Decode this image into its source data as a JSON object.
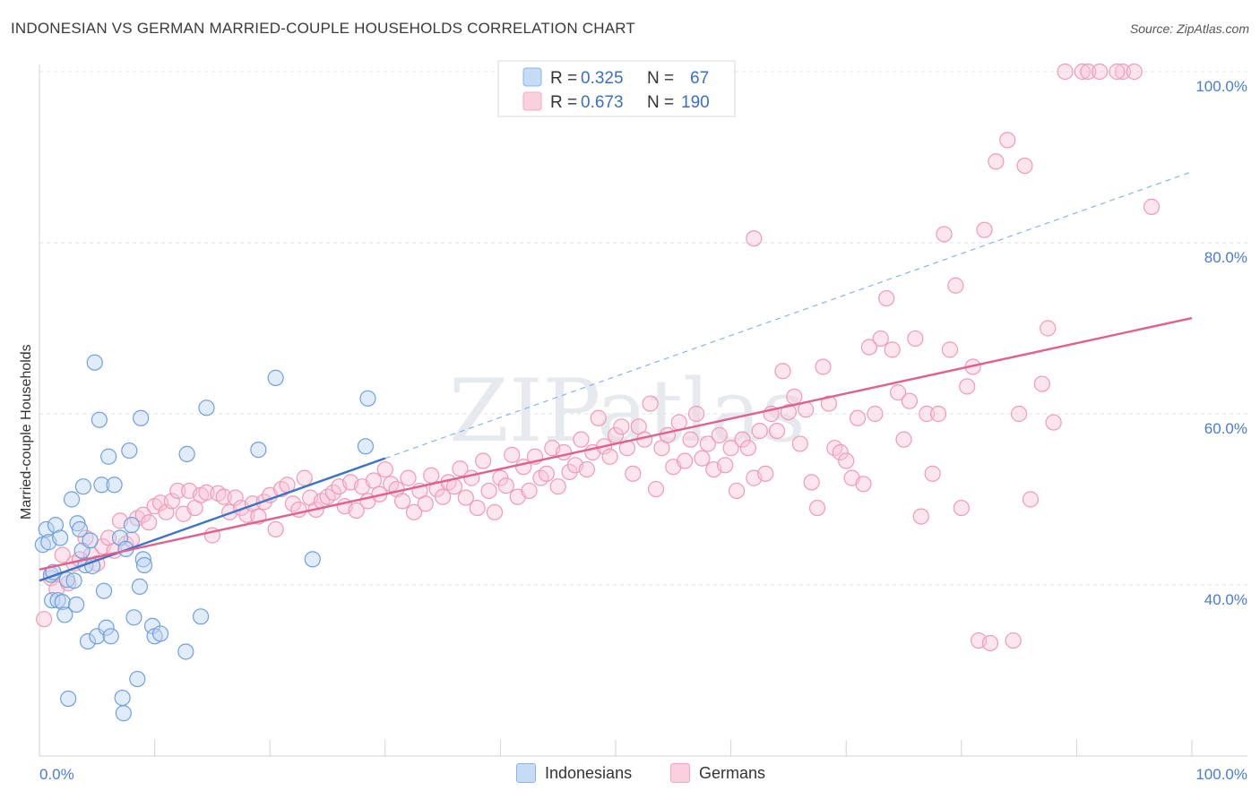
{
  "chart_data": {
    "type": "scatter",
    "title": "INDONESIAN VS GERMAN MARRIED-COUPLE HOUSEHOLDS CORRELATION CHART",
    "source": "Source: ZipAtlas.com",
    "ylabel": "Married-couple Households",
    "xlim": [
      0,
      100
    ],
    "ylim": [
      20,
      102
    ],
    "x_tick_labels": [
      "0.0%",
      "100.0%"
    ],
    "y_ticks": [
      40,
      60,
      80,
      100
    ],
    "y_tick_labels": [
      "40.0%",
      "60.0%",
      "80.0%",
      "100.0%"
    ],
    "watermark": "ZIPatlas",
    "legend": [
      {
        "r_label": "R =",
        "r_value": "0.325",
        "n_label": "N =",
        "n_value": "67"
      },
      {
        "r_label": "R =",
        "r_value": "0.673",
        "n_label": "N =",
        "n_value": "190"
      }
    ],
    "series": [
      {
        "name": "Indonesians",
        "color": "#8ab4e8",
        "line_color": "#3a73c9",
        "trend": {
          "x0": 0,
          "y0": 40.5,
          "x1": 30,
          "y1": 54.8,
          "dashed_to_x": 100,
          "dashed_to_y": 88.3
        },
        "points": [
          [
            0.3,
            44.7
          ],
          [
            0.6,
            46.5
          ],
          [
            0.8,
            45.0
          ],
          [
            1.0,
            41.2
          ],
          [
            1.1,
            38.2
          ],
          [
            1.2,
            41.5
          ],
          [
            1.4,
            47.0
          ],
          [
            1.6,
            38.2
          ],
          [
            1.8,
            45.5
          ],
          [
            2.0,
            38.0
          ],
          [
            2.2,
            36.5
          ],
          [
            2.4,
            40.6
          ],
          [
            2.5,
            26.7
          ],
          [
            2.8,
            50.0
          ],
          [
            3.0,
            40.5
          ],
          [
            3.2,
            37.7
          ],
          [
            3.3,
            47.2
          ],
          [
            3.5,
            46.5
          ],
          [
            3.7,
            44.0
          ],
          [
            3.8,
            51.5
          ],
          [
            4.0,
            42.3
          ],
          [
            4.2,
            33.4
          ],
          [
            4.4,
            45.2
          ],
          [
            4.6,
            42.2
          ],
          [
            4.8,
            66.0
          ],
          [
            5.0,
            34.0
          ],
          [
            5.2,
            59.3
          ],
          [
            5.4,
            51.7
          ],
          [
            5.6,
            39.3
          ],
          [
            5.8,
            35.0
          ],
          [
            6.0,
            55.0
          ],
          [
            6.2,
            34.0
          ],
          [
            6.5,
            51.7
          ],
          [
            7.0,
            45.5
          ],
          [
            7.2,
            26.8
          ],
          [
            7.3,
            25.0
          ],
          [
            7.5,
            44.2
          ],
          [
            7.8,
            55.7
          ],
          [
            8.0,
            47.0
          ],
          [
            8.2,
            36.2
          ],
          [
            8.5,
            29.0
          ],
          [
            8.7,
            39.8
          ],
          [
            8.8,
            59.5
          ],
          [
            9.0,
            43.0
          ],
          [
            9.1,
            42.3
          ],
          [
            9.8,
            35.2
          ],
          [
            10.0,
            34.0
          ],
          [
            10.5,
            34.3
          ],
          [
            12.7,
            32.2
          ],
          [
            12.8,
            55.3
          ],
          [
            14.0,
            36.3
          ],
          [
            14.5,
            60.7
          ],
          [
            19.0,
            55.8
          ],
          [
            20.5,
            64.2
          ],
          [
            23.7,
            43.0
          ],
          [
            28.5,
            61.8
          ],
          [
            28.3,
            56.2
          ]
        ]
      },
      {
        "name": "Germans",
        "color": "#f5a8c0",
        "line_color": "#e0608f",
        "trend": {
          "x0": 0,
          "y0": 41.8,
          "x1": 100,
          "y1": 71.2
        },
        "points": [
          [
            0.4,
            36.0
          ],
          [
            1.0,
            40.8
          ],
          [
            1.5,
            39.5
          ],
          [
            2.0,
            43.5
          ],
          [
            2.5,
            40.2
          ],
          [
            3.0,
            42.5
          ],
          [
            3.5,
            43.0
          ],
          [
            4.0,
            45.5
          ],
          [
            4.5,
            43.5
          ],
          [
            5.0,
            42.5
          ],
          [
            5.5,
            44.5
          ],
          [
            6.0,
            45.5
          ],
          [
            6.5,
            44.0
          ],
          [
            7.0,
            47.5
          ],
          [
            7.5,
            44.8
          ],
          [
            8.0,
            45.3
          ],
          [
            8.5,
            47.8
          ],
          [
            9.0,
            48.2
          ],
          [
            9.5,
            47.3
          ],
          [
            10.0,
            49.2
          ],
          [
            10.5,
            49.6
          ],
          [
            11.0,
            48.5
          ],
          [
            11.5,
            49.8
          ],
          [
            12.0,
            51.0
          ],
          [
            12.5,
            48.3
          ],
          [
            13.0,
            51.0
          ],
          [
            13.5,
            49.0
          ],
          [
            14.0,
            50.5
          ],
          [
            14.5,
            50.8
          ],
          [
            15.0,
            45.8
          ],
          [
            15.5,
            50.7
          ],
          [
            16.0,
            50.3
          ],
          [
            16.5,
            48.5
          ],
          [
            17.0,
            50.2
          ],
          [
            17.5,
            49.0
          ],
          [
            18.0,
            48.2
          ],
          [
            18.5,
            49.5
          ],
          [
            19.0,
            48.0
          ],
          [
            19.5,
            49.7
          ],
          [
            20.0,
            50.5
          ],
          [
            20.5,
            46.5
          ],
          [
            21.0,
            51.2
          ],
          [
            21.5,
            51.7
          ],
          [
            22.0,
            49.5
          ],
          [
            22.5,
            48.8
          ],
          [
            23.0,
            52.5
          ],
          [
            23.5,
            50.2
          ],
          [
            24.0,
            48.8
          ],
          [
            24.5,
            49.8
          ],
          [
            25.0,
            50.3
          ],
          [
            25.5,
            50.8
          ],
          [
            26.0,
            51.5
          ],
          [
            26.5,
            49.2
          ],
          [
            27.0,
            52.0
          ],
          [
            27.5,
            48.7
          ],
          [
            28.0,
            51.5
          ],
          [
            28.5,
            49.8
          ],
          [
            29.0,
            52.2
          ],
          [
            29.5,
            50.6
          ],
          [
            30.0,
            53.5
          ],
          [
            30.5,
            51.8
          ],
          [
            31.0,
            51.2
          ],
          [
            31.5,
            49.8
          ],
          [
            32.0,
            52.5
          ],
          [
            32.5,
            48.5
          ],
          [
            33.0,
            51.0
          ],
          [
            33.5,
            49.5
          ],
          [
            34.0,
            52.8
          ],
          [
            34.5,
            51.2
          ],
          [
            35.0,
            50.3
          ],
          [
            35.5,
            52.0
          ],
          [
            36.0,
            51.5
          ],
          [
            36.5,
            53.6
          ],
          [
            37.0,
            50.2
          ],
          [
            37.5,
            52.5
          ],
          [
            38.0,
            49.0
          ],
          [
            38.5,
            54.5
          ],
          [
            39.0,
            51.0
          ],
          [
            39.5,
            48.5
          ],
          [
            40.0,
            52.5
          ],
          [
            40.5,
            51.6
          ],
          [
            41.0,
            55.2
          ],
          [
            41.5,
            50.3
          ],
          [
            42.0,
            53.8
          ],
          [
            42.5,
            51.0
          ],
          [
            43.0,
            55.0
          ],
          [
            43.5,
            52.5
          ],
          [
            44.0,
            53.0
          ],
          [
            44.5,
            56.0
          ],
          [
            45.0,
            51.5
          ],
          [
            45.5,
            55.5
          ],
          [
            46.0,
            53.2
          ],
          [
            46.5,
            54.0
          ],
          [
            47.0,
            57.0
          ],
          [
            47.5,
            53.5
          ],
          [
            48.0,
            55.5
          ],
          [
            48.5,
            59.5
          ],
          [
            49.0,
            56.2
          ],
          [
            49.5,
            55.0
          ],
          [
            50.0,
            57.5
          ],
          [
            50.5,
            58.5
          ],
          [
            51.0,
            56.0
          ],
          [
            51.5,
            53.0
          ],
          [
            52.0,
            58.5
          ],
          [
            52.5,
            57.0
          ],
          [
            53.0,
            61.2
          ],
          [
            53.5,
            51.2
          ],
          [
            54.0,
            56.0
          ],
          [
            54.5,
            57.5
          ],
          [
            55.0,
            53.8
          ],
          [
            55.5,
            59.0
          ],
          [
            56.0,
            54.5
          ],
          [
            56.5,
            57.0
          ],
          [
            57.0,
            60.0
          ],
          [
            57.5,
            54.8
          ],
          [
            58.0,
            56.5
          ],
          [
            58.5,
            53.5
          ],
          [
            59.0,
            57.5
          ],
          [
            59.5,
            54.0
          ],
          [
            60.0,
            56.0
          ],
          [
            60.5,
            51.0
          ],
          [
            61.0,
            57.0
          ],
          [
            61.5,
            56.0
          ],
          [
            62.0,
            52.5
          ],
          [
            62.5,
            58.0
          ],
          [
            63.0,
            53.0
          ],
          [
            63.5,
            60.0
          ],
          [
            64.0,
            58.0
          ],
          [
            64.5,
            65.0
          ],
          [
            65.0,
            60.2
          ],
          [
            65.5,
            62.0
          ],
          [
            66.0,
            56.5
          ],
          [
            66.5,
            60.5
          ],
          [
            67.0,
            52.0
          ],
          [
            67.5,
            49.0
          ],
          [
            68.0,
            65.5
          ],
          [
            68.5,
            61.2
          ],
          [
            69.0,
            56.0
          ],
          [
            69.5,
            55.5
          ],
          [
            70.0,
            54.5
          ],
          [
            70.5,
            52.5
          ],
          [
            71.0,
            59.5
          ],
          [
            71.5,
            51.8
          ],
          [
            72.0,
            67.8
          ],
          [
            72.5,
            60.0
          ],
          [
            73.0,
            68.8
          ],
          [
            73.5,
            73.5
          ],
          [
            74.0,
            67.5
          ],
          [
            74.5,
            62.5
          ],
          [
            75.0,
            57.0
          ],
          [
            75.5,
            61.5
          ],
          [
            76.0,
            68.8
          ],
          [
            76.5,
            48.0
          ],
          [
            77.0,
            60.0
          ],
          [
            77.5,
            53.0
          ],
          [
            78.0,
            60.0
          ],
          [
            78.5,
            81.0
          ],
          [
            79.0,
            67.5
          ],
          [
            79.5,
            75.0
          ],
          [
            80.0,
            49.0
          ],
          [
            80.5,
            63.2
          ],
          [
            81.0,
            65.5
          ],
          [
            81.5,
            33.5
          ],
          [
            82.0,
            81.5
          ],
          [
            83.0,
            89.5
          ],
          [
            84.0,
            92.0
          ],
          [
            85.0,
            60.0
          ],
          [
            85.5,
            89.0
          ],
          [
            86.0,
            50.0
          ],
          [
            87.0,
            63.5
          ],
          [
            87.5,
            70.0
          ],
          [
            88.0,
            59.0
          ],
          [
            89.0,
            100
          ],
          [
            90.5,
            100
          ],
          [
            91.0,
            100
          ],
          [
            92.0,
            100
          ],
          [
            94.0,
            100
          ],
          [
            95.0,
            100
          ],
          [
            96.5,
            84.2
          ],
          [
            62.0,
            80.5
          ],
          [
            84.5,
            33.5
          ],
          [
            82.5,
            33.2
          ],
          [
            93.5,
            100
          ]
        ]
      }
    ]
  }
}
